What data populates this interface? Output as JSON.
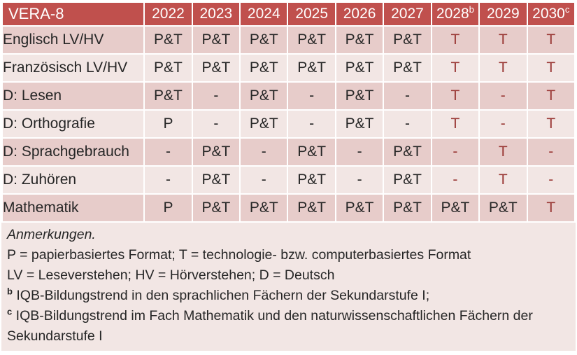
{
  "colors": {
    "header_bg": "#C0504D",
    "header_text": "#FFFFFF",
    "band_dark": "#E7CCCA",
    "band_light": "#F2E6E4",
    "text_dark": "#262626",
    "text_red": "#9A3936"
  },
  "table": {
    "header": {
      "corner_label": "VERA-8",
      "years": [
        {
          "label": "2022",
          "sup": ""
        },
        {
          "label": "2023",
          "sup": ""
        },
        {
          "label": "2024",
          "sup": ""
        },
        {
          "label": "2025",
          "sup": ""
        },
        {
          "label": "2026",
          "sup": ""
        },
        {
          "label": "2027",
          "sup": ""
        },
        {
          "label": "2028",
          "sup": "b"
        },
        {
          "label": "2029",
          "sup": ""
        },
        {
          "label": "2030",
          "sup": "c"
        }
      ]
    },
    "rows": [
      {
        "label": "Englisch LV/HV",
        "values": [
          "P&T",
          "P&T",
          "P&T",
          "P&T",
          "P&T",
          "P&T",
          "T",
          "T",
          "T"
        ]
      },
      {
        "label": "Französisch LV/HV",
        "values": [
          "P&T",
          "P&T",
          "P&T",
          "P&T",
          "P&T",
          "P&T",
          "T",
          "T",
          "T"
        ]
      },
      {
        "label": "D: Lesen",
        "values": [
          "P&T",
          "-",
          "P&T",
          "-",
          "P&T",
          "-",
          "T",
          "-",
          "T"
        ]
      },
      {
        "label": "D: Orthografie",
        "values": [
          "P",
          "-",
          "P&T",
          "-",
          "P&T",
          "-",
          "T",
          "-",
          "T"
        ]
      },
      {
        "label": "D: Sprachgebrauch",
        "values": [
          "-",
          "P&T",
          "-",
          "P&T",
          "-",
          "P&T",
          "-",
          "T",
          "-"
        ]
      },
      {
        "label": "D: Zuhören",
        "values": [
          "-",
          "P&T",
          "-",
          "P&T",
          "-",
          "P&T",
          "-",
          "T",
          "-"
        ]
      },
      {
        "label": "Mathematik",
        "values": [
          "P",
          "P&T",
          "P&T",
          "P&T",
          "P&T",
          "P&T",
          "P&T",
          "P&T",
          "T"
        ]
      }
    ]
  },
  "notes": {
    "title": "Anmerkungen.",
    "formats": "P = papierbasiertes Format; T = technologie- bzw. computerbasiertes Format",
    "abbreviations": "LV = Leseverstehen; HV = Hörverstehen; D = Deutsch",
    "b_sup": "b",
    "b_text": "IQB-Bildungstrend in den sprachlichen Fächern der Sekundarstufe I;",
    "c_sup": "c",
    "c_text": "IQB-Bildungstrend im Fach Mathematik und den naturwissenschaftlichen Fächern der Sekundarstufe I"
  }
}
